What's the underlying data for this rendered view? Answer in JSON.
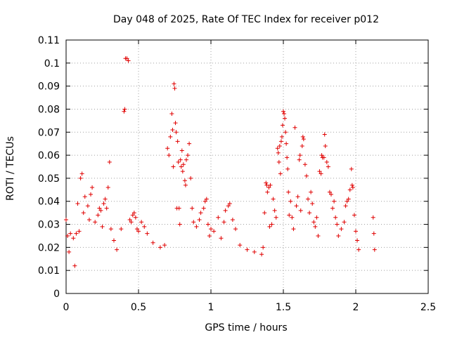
{
  "chart_data": {
    "type": "scatter",
    "title": "Day 048 of 2025, Rate Of TEC Index for receiver p012",
    "xlabel": "GPS time / hours",
    "ylabel": "ROTI / TECUs",
    "xlim": [
      0,
      2.5
    ],
    "ylim": [
      0,
      0.11
    ],
    "grid": true,
    "xticks": [
      0,
      0.5,
      1,
      1.5,
      2,
      2.5
    ],
    "xtick_labels": [
      "0",
      "0.5",
      "1",
      "1.5",
      "2",
      "2.5"
    ],
    "yticks": [
      0,
      0.01,
      0.02,
      0.03,
      0.04,
      0.05,
      0.06,
      0.07,
      0.08,
      0.09,
      0.1,
      0.11
    ],
    "ytick_labels": [
      "0",
      "0.01",
      "0.02",
      "0.03",
      "0.04",
      "0.05",
      "0.06",
      "0.07",
      "0.08",
      "0.09",
      "0.1",
      "0.11"
    ],
    "marker": "+",
    "color": "#e00000",
    "series": [
      {
        "name": "ROTI",
        "points": [
          [
            0.0,
            0.032
          ],
          [
            0.01,
            0.025
          ],
          [
            0.02,
            0.018
          ],
          [
            0.03,
            0.026
          ],
          [
            0.05,
            0.024
          ],
          [
            0.06,
            0.012
          ],
          [
            0.07,
            0.026
          ],
          [
            0.08,
            0.039
          ],
          [
            0.09,
            0.027
          ],
          [
            0.1,
            0.05
          ],
          [
            0.11,
            0.052
          ],
          [
            0.12,
            0.035
          ],
          [
            0.13,
            0.042
          ],
          [
            0.15,
            0.038
          ],
          [
            0.16,
            0.032
          ],
          [
            0.17,
            0.043
          ],
          [
            0.18,
            0.046
          ],
          [
            0.2,
            0.031
          ],
          [
            0.22,
            0.034
          ],
          [
            0.23,
            0.037
          ],
          [
            0.24,
            0.036
          ],
          [
            0.25,
            0.029
          ],
          [
            0.26,
            0.039
          ],
          [
            0.27,
            0.041
          ],
          [
            0.28,
            0.037
          ],
          [
            0.29,
            0.046
          ],
          [
            0.3,
            0.057
          ],
          [
            0.31,
            0.028
          ],
          [
            0.33,
            0.023
          ],
          [
            0.35,
            0.019
          ],
          [
            0.38,
            0.028
          ],
          [
            0.4,
            0.079
          ],
          [
            0.405,
            0.08
          ],
          [
            0.41,
            0.102
          ],
          [
            0.42,
            0.102
          ],
          [
            0.43,
            0.101
          ],
          [
            0.44,
            0.032
          ],
          [
            0.45,
            0.031
          ],
          [
            0.46,
            0.034
          ],
          [
            0.47,
            0.035
          ],
          [
            0.48,
            0.033
          ],
          [
            0.49,
            0.028
          ],
          [
            0.5,
            0.027
          ],
          [
            0.52,
            0.031
          ],
          [
            0.54,
            0.029
          ],
          [
            0.56,
            0.026
          ],
          [
            0.6,
            0.022
          ],
          [
            0.65,
            0.02
          ],
          [
            0.68,
            0.021
          ],
          [
            0.7,
            0.063
          ],
          [
            0.71,
            0.06
          ],
          [
            0.72,
            0.068
          ],
          [
            0.73,
            0.078
          ],
          [
            0.735,
            0.071
          ],
          [
            0.74,
            0.055
          ],
          [
            0.745,
            0.091
          ],
          [
            0.75,
            0.089
          ],
          [
            0.755,
            0.074
          ],
          [
            0.76,
            0.07
          ],
          [
            0.765,
            0.037
          ],
          [
            0.77,
            0.066
          ],
          [
            0.775,
            0.057
          ],
          [
            0.78,
            0.037
          ],
          [
            0.785,
            0.03
          ],
          [
            0.79,
            0.058
          ],
          [
            0.795,
            0.055
          ],
          [
            0.8,
            0.062
          ],
          [
            0.805,
            0.053
          ],
          [
            0.81,
            0.056
          ],
          [
            0.82,
            0.049
          ],
          [
            0.825,
            0.047
          ],
          [
            0.83,
            0.058
          ],
          [
            0.84,
            0.06
          ],
          [
            0.85,
            0.065
          ],
          [
            0.86,
            0.05
          ],
          [
            0.87,
            0.037
          ],
          [
            0.88,
            0.031
          ],
          [
            0.9,
            0.029
          ],
          [
            0.92,
            0.032
          ],
          [
            0.93,
            0.035
          ],
          [
            0.95,
            0.037
          ],
          [
            0.96,
            0.04
          ],
          [
            0.97,
            0.041
          ],
          [
            0.98,
            0.03
          ],
          [
            0.99,
            0.025
          ],
          [
            1.0,
            0.028
          ],
          [
            1.02,
            0.027
          ],
          [
            1.05,
            0.033
          ],
          [
            1.07,
            0.024
          ],
          [
            1.09,
            0.031
          ],
          [
            1.1,
            0.036
          ],
          [
            1.12,
            0.038
          ],
          [
            1.13,
            0.039
          ],
          [
            1.15,
            0.032
          ],
          [
            1.17,
            0.028
          ],
          [
            1.2,
            0.021
          ],
          [
            1.25,
            0.019
          ],
          [
            1.3,
            0.018
          ],
          [
            1.35,
            0.017
          ],
          [
            1.36,
            0.02
          ],
          [
            1.37,
            0.035
          ],
          [
            1.38,
            0.048
          ],
          [
            1.385,
            0.047
          ],
          [
            1.39,
            0.044
          ],
          [
            1.4,
            0.046
          ],
          [
            1.405,
            0.029
          ],
          [
            1.41,
            0.047
          ],
          [
            1.42,
            0.03
          ],
          [
            1.43,
            0.041
          ],
          [
            1.44,
            0.036
          ],
          [
            1.45,
            0.033
          ],
          [
            1.46,
            0.063
          ],
          [
            1.465,
            0.061
          ],
          [
            1.47,
            0.057
          ],
          [
            1.475,
            0.064
          ],
          [
            1.48,
            0.052
          ],
          [
            1.485,
            0.066
          ],
          [
            1.49,
            0.068
          ],
          [
            1.495,
            0.073
          ],
          [
            1.5,
            0.079
          ],
          [
            1.505,
            0.078
          ],
          [
            1.51,
            0.076
          ],
          [
            1.515,
            0.07
          ],
          [
            1.52,
            0.065
          ],
          [
            1.525,
            0.059
          ],
          [
            1.53,
            0.054
          ],
          [
            1.535,
            0.044
          ],
          [
            1.54,
            0.034
          ],
          [
            1.55,
            0.04
          ],
          [
            1.56,
            0.033
          ],
          [
            1.57,
            0.028
          ],
          [
            1.58,
            0.072
          ],
          [
            1.59,
            0.038
          ],
          [
            1.6,
            0.042
          ],
          [
            1.61,
            0.058
          ],
          [
            1.615,
            0.06
          ],
          [
            1.62,
            0.036
          ],
          [
            1.63,
            0.064
          ],
          [
            1.635,
            0.068
          ],
          [
            1.64,
            0.067
          ],
          [
            1.65,
            0.056
          ],
          [
            1.66,
            0.051
          ],
          [
            1.67,
            0.041
          ],
          [
            1.68,
            0.035
          ],
          [
            1.69,
            0.044
          ],
          [
            1.7,
            0.039
          ],
          [
            1.71,
            0.031
          ],
          [
            1.72,
            0.029
          ],
          [
            1.73,
            0.033
          ],
          [
            1.74,
            0.025
          ],
          [
            1.75,
            0.053
          ],
          [
            1.76,
            0.052
          ],
          [
            1.765,
            0.06
          ],
          [
            1.77,
            0.059
          ],
          [
            1.78,
            0.059
          ],
          [
            1.785,
            0.069
          ],
          [
            1.79,
            0.064
          ],
          [
            1.8,
            0.057
          ],
          [
            1.81,
            0.055
          ],
          [
            1.82,
            0.044
          ],
          [
            1.83,
            0.043
          ],
          [
            1.84,
            0.037
          ],
          [
            1.85,
            0.04
          ],
          [
            1.86,
            0.033
          ],
          [
            1.87,
            0.03
          ],
          [
            1.88,
            0.025
          ],
          [
            1.9,
            0.028
          ],
          [
            1.92,
            0.031
          ],
          [
            1.93,
            0.038
          ],
          [
            1.94,
            0.04
          ],
          [
            1.95,
            0.041
          ],
          [
            1.96,
            0.045
          ],
          [
            1.97,
            0.054
          ],
          [
            1.975,
            0.047
          ],
          [
            1.98,
            0.046
          ],
          [
            1.99,
            0.034
          ],
          [
            2.0,
            0.027
          ],
          [
            2.01,
            0.023
          ],
          [
            2.02,
            0.019
          ],
          [
            2.12,
            0.033
          ],
          [
            2.125,
            0.026
          ],
          [
            2.13,
            0.019
          ]
        ]
      }
    ]
  }
}
